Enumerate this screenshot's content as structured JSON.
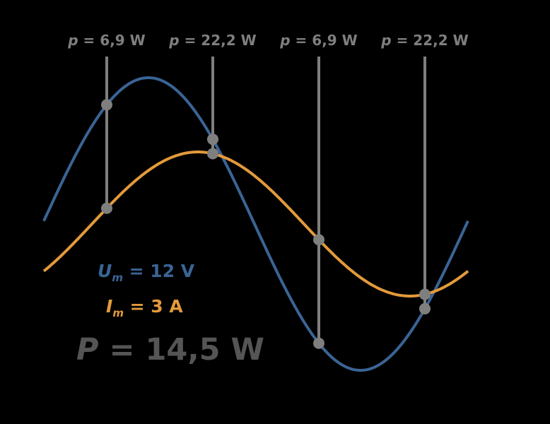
{
  "markers": [
    {
      "symbol": "p",
      "text": " = 6,9 W"
    },
    {
      "symbol": "p",
      "text": " = 22,2 W"
    },
    {
      "symbol": "p",
      "text": " = 6,9 W"
    },
    {
      "symbol": "p",
      "text": " = 22,2 W"
    }
  ],
  "voltage": {
    "symbol": "U",
    "subscript": "m",
    "text": " = 12 V"
  },
  "current": {
    "symbol": "I",
    "subscript": "m",
    "text": " = 3 A"
  },
  "power": {
    "symbol": "P",
    "text": " = 14,5 W"
  }
}
